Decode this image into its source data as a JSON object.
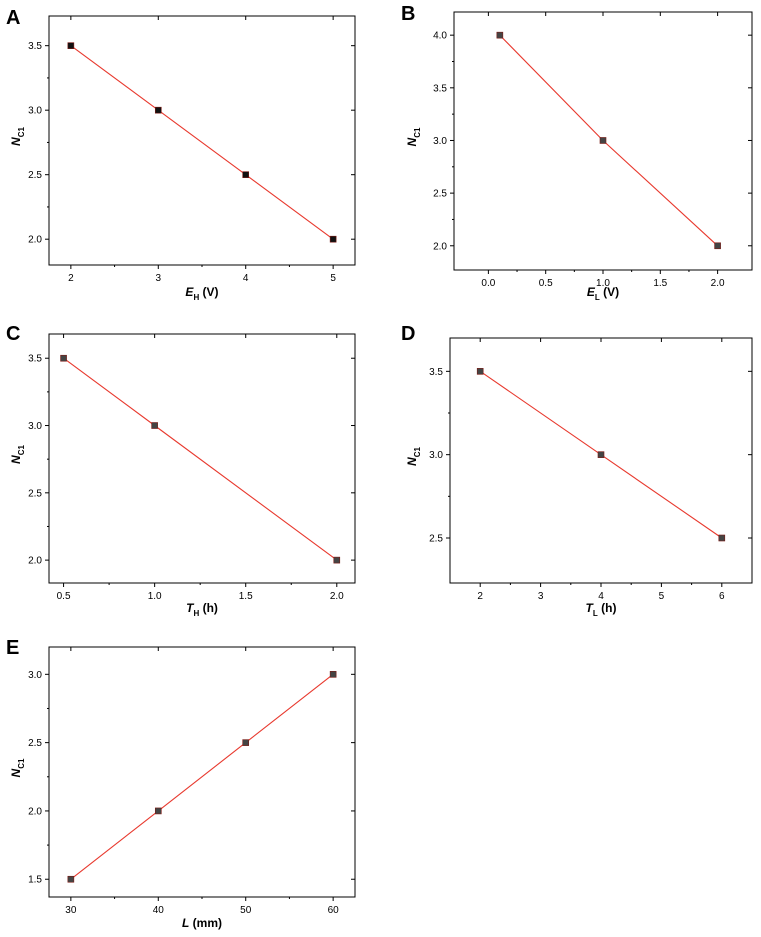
{
  "chart_data": [
    {
      "panel": "A",
      "type": "line",
      "xlabel": {
        "symbol": "E",
        "subscript": "H",
        "unit": " (V)"
      },
      "ylabel": {
        "symbol": "N",
        "subscript": "C1"
      },
      "x": [
        2,
        3,
        4,
        5
      ],
      "y": [
        3.5,
        3.0,
        2.5,
        2.0
      ],
      "xlim": [
        1.75,
        5.25
      ],
      "ylim": [
        1.8,
        3.73
      ],
      "xticks": [
        2,
        3,
        4,
        5
      ],
      "xtick_labels": [
        "2",
        "3",
        "4",
        "5"
      ],
      "yticks": [
        2.0,
        2.5,
        3.0,
        3.5
      ],
      "ytick_labels": [
        "2.0",
        "2.5",
        "3.0",
        "3.5"
      ],
      "marker_color": "#111111",
      "line_color": "#e8392e",
      "grid": false
    },
    {
      "panel": "B",
      "type": "line",
      "xlabel": {
        "symbol": "E",
        "subscript": "L",
        "unit": " (V)"
      },
      "ylabel": {
        "symbol": "N",
        "subscript": "C1"
      },
      "x": [
        0.1,
        1.0,
        2.0
      ],
      "y": [
        4.0,
        3.0,
        2.0
      ],
      "xlim": [
        -0.3,
        2.3
      ],
      "ylim": [
        1.77,
        4.22
      ],
      "xticks": [
        0.0,
        0.5,
        1.0,
        1.5,
        2.0
      ],
      "xtick_labels": [
        "0.0",
        "0.5",
        "1.0",
        "1.5",
        "2.0"
      ],
      "yticks": [
        2.0,
        2.5,
        3.0,
        3.5,
        4.0
      ],
      "ytick_labels": [
        "2.0",
        "2.5",
        "3.0",
        "3.5",
        "4.0"
      ],
      "marker_color": "#444444",
      "line_color": "#e8392e",
      "grid": false
    },
    {
      "panel": "C",
      "type": "line",
      "xlabel": {
        "symbol": "T",
        "subscript": "H",
        "unit": " (h)"
      },
      "ylabel": {
        "symbol": "N",
        "subscript": "C1"
      },
      "x": [
        0.5,
        1.0,
        2.0
      ],
      "y": [
        3.5,
        3.0,
        2.0
      ],
      "xlim": [
        0.42,
        2.1
      ],
      "ylim": [
        1.83,
        3.68
      ],
      "xticks": [
        0.5,
        1.0,
        1.5,
        2.0
      ],
      "xtick_labels": [
        "0.5",
        "1.0",
        "1.5",
        "2.0"
      ],
      "yticks": [
        2.0,
        2.5,
        3.0,
        3.5
      ],
      "ytick_labels": [
        "2.0",
        "2.5",
        "3.0",
        "3.5"
      ],
      "marker_color": "#444444",
      "line_color": "#e8392e",
      "grid": false
    },
    {
      "panel": "D",
      "type": "line",
      "xlabel": {
        "symbol": "T",
        "subscript": "L",
        "unit": " (h)"
      },
      "ylabel": {
        "symbol": "N",
        "subscript": "C1"
      },
      "x": [
        2,
        4,
        6
      ],
      "y": [
        3.5,
        3.0,
        2.5
      ],
      "xlim": [
        1.5,
        6.5
      ],
      "ylim": [
        2.23,
        3.7
      ],
      "xticks": [
        2,
        3,
        4,
        5,
        6
      ],
      "xtick_labels": [
        "2",
        "3",
        "4",
        "5",
        "6"
      ],
      "yticks": [
        2.5,
        3.0,
        3.5
      ],
      "ytick_labels": [
        "2.5",
        "3.0",
        "3.5"
      ],
      "marker_color": "#444444",
      "line_color": "#e8392e",
      "grid": false
    },
    {
      "panel": "E",
      "type": "line",
      "xlabel": {
        "symbol": "L",
        "subscript": "",
        "unit": " (mm)"
      },
      "ylabel": {
        "symbol": "N",
        "subscript": "C1"
      },
      "x": [
        30,
        40,
        50,
        60
      ],
      "y": [
        1.5,
        2.0,
        2.5,
        3.0
      ],
      "xlim": [
        27.5,
        62.5
      ],
      "ylim": [
        1.37,
        3.2
      ],
      "xticks": [
        30,
        40,
        50,
        60
      ],
      "xtick_labels": [
        "30",
        "40",
        "50",
        "60"
      ],
      "yticks": [
        1.5,
        2.0,
        2.5,
        3.0
      ],
      "ytick_labels": [
        "1.5",
        "2.0",
        "2.5",
        "3.0"
      ],
      "marker_color": "#444444",
      "line_color": "#e8392e",
      "grid": false
    }
  ]
}
